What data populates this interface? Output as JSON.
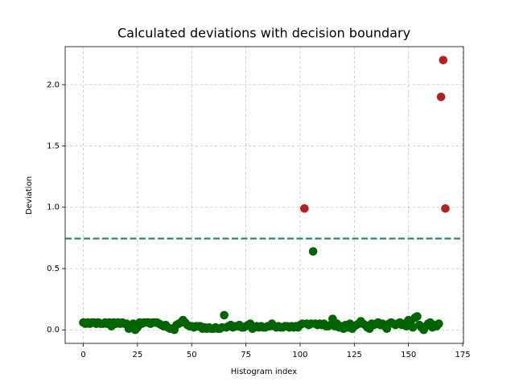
{
  "chart_data": {
    "type": "scatter",
    "title": "Calculated deviations with decision boundary",
    "x_label": "Histogram index",
    "y_label": "Deviation",
    "xlim": [
      -8.35,
      175.35
    ],
    "ylim": [
      -0.11,
      2.31
    ],
    "xticks": [
      0,
      25,
      50,
      75,
      100,
      125,
      150,
      175
    ],
    "yticks": [
      {
        "value": 0,
        "label": "0.0"
      },
      {
        "value": 0.5,
        "label": "0.5"
      },
      {
        "value": 1,
        "label": "1.0"
      },
      {
        "value": 1.5,
        "label": "1.5"
      },
      {
        "value": 2,
        "label": "2.0"
      }
    ],
    "grid": true,
    "threshold": 0.745,
    "threshold_color": "#2e8b57",
    "series": [
      {
        "color": "#006400",
        "x": [
          0,
          1,
          2,
          3,
          4,
          5,
          6,
          7,
          8,
          9,
          10,
          11,
          12,
          13,
          14,
          15,
          16,
          17,
          18,
          19,
          20,
          21,
          22,
          23,
          24,
          25,
          26,
          27,
          28,
          29,
          30,
          31,
          32,
          33,
          34,
          35,
          36,
          37,
          38,
          39,
          40,
          41,
          42,
          43,
          44,
          45,
          46,
          47,
          48,
          49,
          50,
          51,
          52,
          53,
          54,
          55,
          56,
          57,
          58,
          59,
          60,
          61,
          62,
          63,
          64,
          65,
          66,
          67,
          68,
          69,
          70,
          71,
          72,
          73,
          74,
          75,
          76,
          77,
          78,
          79,
          80,
          81,
          82,
          83,
          84,
          85,
          86,
          87,
          88,
          89,
          90,
          91,
          92,
          93,
          94,
          95,
          96,
          97,
          98,
          99,
          100,
          101,
          103,
          104,
          105,
          106,
          107,
          108,
          109,
          110,
          111,
          112,
          113,
          114,
          115,
          116,
          117,
          118,
          119,
          120,
          121,
          122,
          123,
          124,
          125,
          126,
          127,
          128,
          129,
          130,
          131,
          132,
          133,
          134,
          135,
          136,
          137,
          138,
          139,
          140,
          141,
          142,
          143,
          144,
          145,
          146,
          147,
          148,
          149,
          150,
          151,
          152,
          153,
          154,
          155,
          156,
          157,
          158,
          159,
          160,
          161,
          162,
          163,
          164
        ],
        "values": [
          0.06,
          0.05,
          0.06,
          0.05,
          0.06,
          0.06,
          0.05,
          0.06,
          0.05,
          0.05,
          0.06,
          0.05,
          0.06,
          0.03,
          0.06,
          0.05,
          0.06,
          0.05,
          0.06,
          0.05,
          0.05,
          0.01,
          0.02,
          0.05,
          0.0,
          0.02,
          0.06,
          0.05,
          0.06,
          0.06,
          0.06,
          0.05,
          0.06,
          0.06,
          0.06,
          0.05,
          0.04,
          0.03,
          0.04,
          0.02,
          0.01,
          0.01,
          0.0,
          0.04,
          0.05,
          0.06,
          0.08,
          0.06,
          0.04,
          0.03,
          0.03,
          0.02,
          0.03,
          0.03,
          0.03,
          0.01,
          0.02,
          0.01,
          0.02,
          0.01,
          0.01,
          0.02,
          0.01,
          0.01,
          0.02,
          0.12,
          0.02,
          0.03,
          0.04,
          0.02,
          0.03,
          0.03,
          0.04,
          0.02,
          0.02,
          0.03,
          0.04,
          0.05,
          0.01,
          0.02,
          0.03,
          0.02,
          0.03,
          0.02,
          0.02,
          0.03,
          0.03,
          0.05,
          0.03,
          0.02,
          0.03,
          0.02,
          0.02,
          0.03,
          0.03,
          0.02,
          0.03,
          0.02,
          0.03,
          0.02,
          0.04,
          0.05,
          0.05,
          0.04,
          0.05,
          0.64,
          0.05,
          0.04,
          0.05,
          0.04,
          0.05,
          0.03,
          0.03,
          0.04,
          0.09,
          0.03,
          0.05,
          0.02,
          0.03,
          0.01,
          0.04,
          0.02,
          0.05,
          0.01,
          0.03,
          0.04,
          0.05,
          0.07,
          0.05,
          0.04,
          0.02,
          0.01,
          0.05,
          0.04,
          0.05,
          0.06,
          0.04,
          0.05,
          0.03,
          0.01,
          0.05,
          0.06,
          0.05,
          0.04,
          0.05,
          0.06,
          0.04,
          0.05,
          0.03,
          0.08,
          0.06,
          0.02,
          0.1,
          0.11,
          0.04,
          0.02,
          0.0,
          0.03,
          0.05,
          0.06,
          0.02,
          0.04,
          0.03,
          0.05
        ]
      },
      {
        "color": "#b22222",
        "x": [
          102,
          165,
          166,
          167
        ],
        "values": [
          0.99,
          1.9,
          2.2,
          0.99
        ]
      }
    ]
  }
}
